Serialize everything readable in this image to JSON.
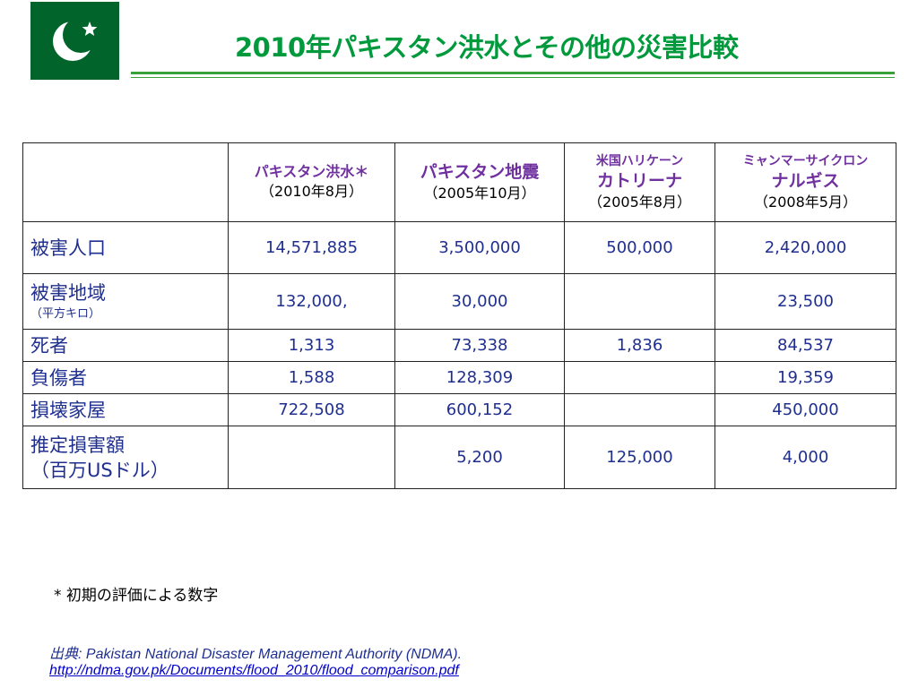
{
  "colors": {
    "flag_green": "#00642b",
    "title_green": "#009a3d",
    "header_purple": "#7030a0",
    "cell_blue": "#1f2f8f",
    "link_blue": "#0000cc"
  },
  "title": "2010年パキスタン洪水とその他の災害比較",
  "table": {
    "columns": [
      {
        "small": "",
        "main": "パキスタン洪水＊",
        "date": "（2010年8月）"
      },
      {
        "small": "",
        "main": "パキスタン地震",
        "date": "（2005年10月）"
      },
      {
        "small": "米国ハリケーン",
        "main": "カトリーナ",
        "date": "（2005年8月）"
      },
      {
        "small": "ミャンマーサイクロン",
        "main": "ナルギス",
        "date": "（2008年5月）"
      }
    ],
    "rows": [
      {
        "label": "被害人口",
        "sublabel": "",
        "values": [
          "14,571,885",
          "3,500,000",
          "500,000",
          "2,420,000"
        ]
      },
      {
        "label": "被害地域",
        "sublabel": "（平方キロ）",
        "values": [
          "132,000,",
          "30,000",
          "",
          "23,500"
        ]
      },
      {
        "label": "死者",
        "sublabel": "",
        "values": [
          "1,313",
          "73,338",
          "1,836",
          "84,537"
        ]
      },
      {
        "label": "負傷者",
        "sublabel": "",
        "values": [
          "1,588",
          "128,309",
          "",
          "19,359"
        ]
      },
      {
        "label": "損壊家屋",
        "sublabel": "",
        "values": [
          "722,508",
          "600,152",
          "",
          "450,000"
        ]
      },
      {
        "label": "推定損害額",
        "sublabel": "（百万USドル）",
        "values": [
          "",
          "5,200",
          "125,000",
          "4,000"
        ]
      }
    ]
  },
  "footnote": "* 初期の評価による数字",
  "source": {
    "prefix": "出典",
    "text": ": Pakistan National Disaster Management Authority (NDMA).",
    "url": "http://ndma.gov.pk/Documents/flood_2010/flood_comparison.pdf"
  }
}
